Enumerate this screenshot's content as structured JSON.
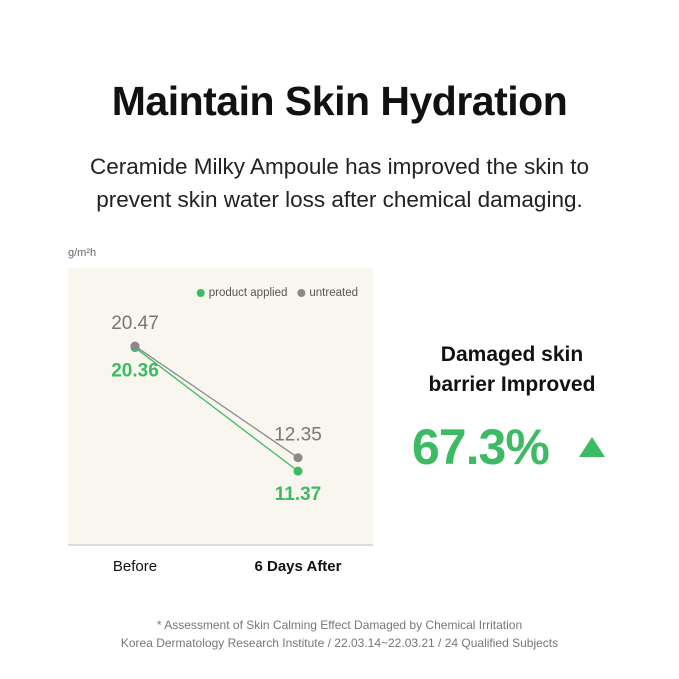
{
  "chart_data": {
    "type": "line",
    "title": "Maintain Skin Hydration",
    "subtitle": "Ceramide Milky Ampoule has improved the skin to prevent skin water loss after chemical damaging.",
    "y_label": "g/m²h",
    "categories": [
      "Before",
      "6 Days After"
    ],
    "series": [
      {
        "name": "product applied",
        "color": "#3dbb64",
        "values": [
          20.36,
          11.37
        ]
      },
      {
        "name": "untreated",
        "color": "#8a8a8a",
        "values": [
          20.47,
          12.35
        ]
      }
    ],
    "ylim": [
      6,
      26
    ],
    "legend": "upper right",
    "annotations": {
      "heading": "Damaged skin barrier Improved",
      "value": "67.3%"
    },
    "footnotes": [
      "* Assessment of Skin Calming Effect Damaged by Chemical Irritation",
      "Korea Dermatology Research Institute / 22.03.14~22.03.21 / 24 Qualified Subjects"
    ]
  }
}
